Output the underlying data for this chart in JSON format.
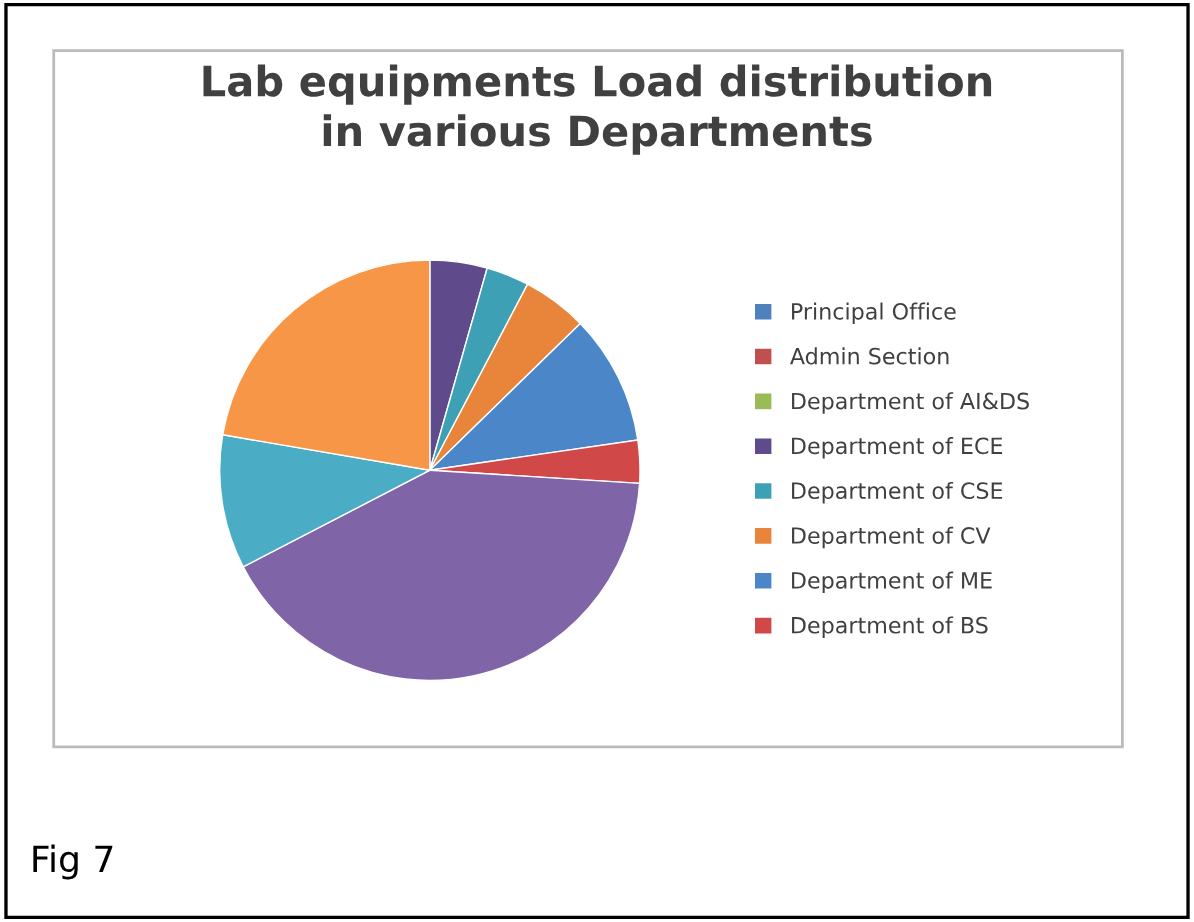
{
  "chart_data": {
    "type": "pie",
    "title": "Lab equipments Load distribution\nin various Departments",
    "categories": [
      "Principal Office",
      "Admin Section",
      "Department of AI&DS",
      "Department of ECE",
      "Department of CSE",
      "Department of CV",
      "Department of ME",
      "Department of BS",
      null,
      null,
      null
    ],
    "values": [
      0,
      0,
      0,
      4.4,
      3.3,
      5.0,
      10.0,
      3.3,
      41.4,
      10.3,
      22.3
    ],
    "colors": [
      "#4f81bd",
      "#c0504d",
      "#9bbb59",
      "#5f4b8b",
      "#3ea0b5",
      "#e8853a",
      "#4a86c8",
      "#d04848",
      "#8064a8",
      "#4bacc6",
      "#f79646"
    ],
    "legend": "right",
    "annotations": [
      "Fig 7"
    ]
  }
}
